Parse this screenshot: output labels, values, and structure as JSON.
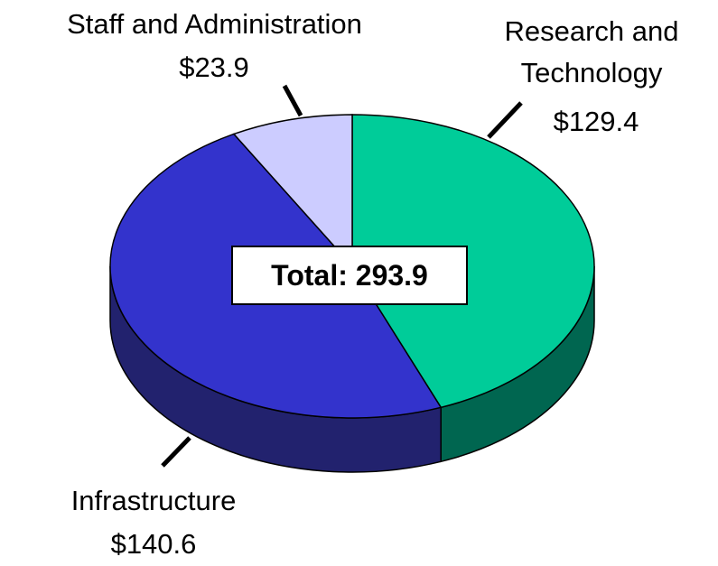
{
  "chart_data": {
    "type": "pie",
    "categories": [
      "Research and Technology",
      "Infrastructure",
      "Staff and Administration"
    ],
    "values": [
      129.4,
      140.6,
      23.9
    ],
    "value_labels": [
      "$129.4",
      "$140.6",
      "$23.9"
    ],
    "colors": [
      "#00cc99",
      "#3333cc",
      "#ccccff"
    ],
    "side_colors": [
      "#006650",
      "#22226e",
      "#8888aa"
    ],
    "annotation": "Total: 293.9"
  }
}
